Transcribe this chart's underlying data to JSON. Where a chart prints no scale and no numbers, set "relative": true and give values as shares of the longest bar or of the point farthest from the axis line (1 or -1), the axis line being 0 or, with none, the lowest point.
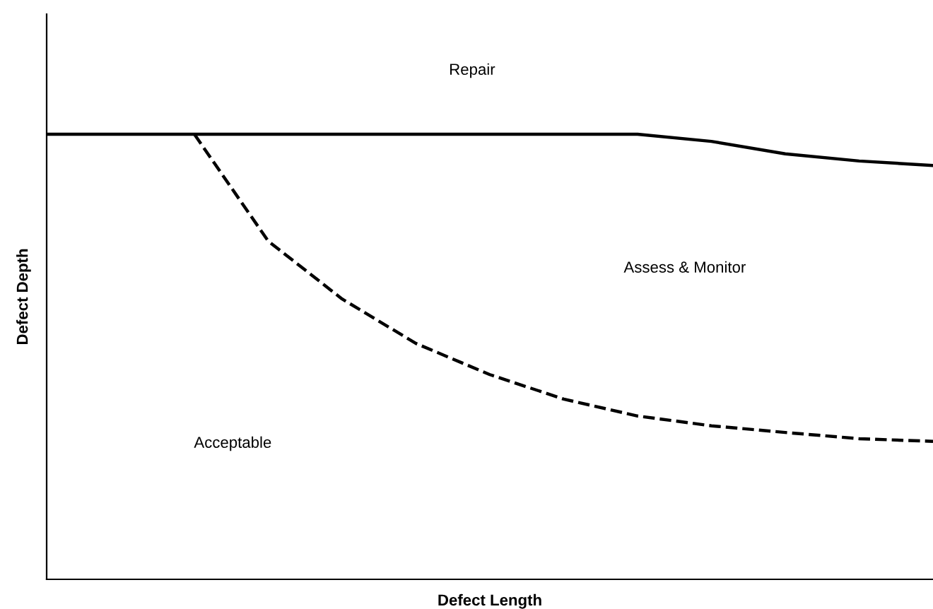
{
  "chart_data": {
    "type": "line",
    "relative": true,
    "xlabel": "Defect Length",
    "ylabel": "Defect Depth",
    "annotations": [
      "Repair",
      "Assess & Monitor",
      "Acceptable"
    ],
    "categories": [
      null,
      null,
      null,
      null,
      null,
      null,
      null,
      null,
      null,
      null,
      null,
      null,
      null
    ],
    "series": [
      {
        "color": "#000000",
        "line_style": "solid",
        "values": [
          1,
          1,
          1,
          1,
          1,
          1,
          1,
          1,
          1,
          0.984,
          0.956,
          0.94,
          0.93
        ]
      },
      {
        "color": "#000000",
        "line_style": "dashed",
        "values": [
          null,
          null,
          1,
          0.76,
          0.63,
          0.53,
          0.46,
          0.405,
          0.367,
          0.345,
          0.33,
          0.316,
          0.31
        ]
      }
    ],
    "grid": false,
    "legend": false,
    "marker": "none"
  }
}
